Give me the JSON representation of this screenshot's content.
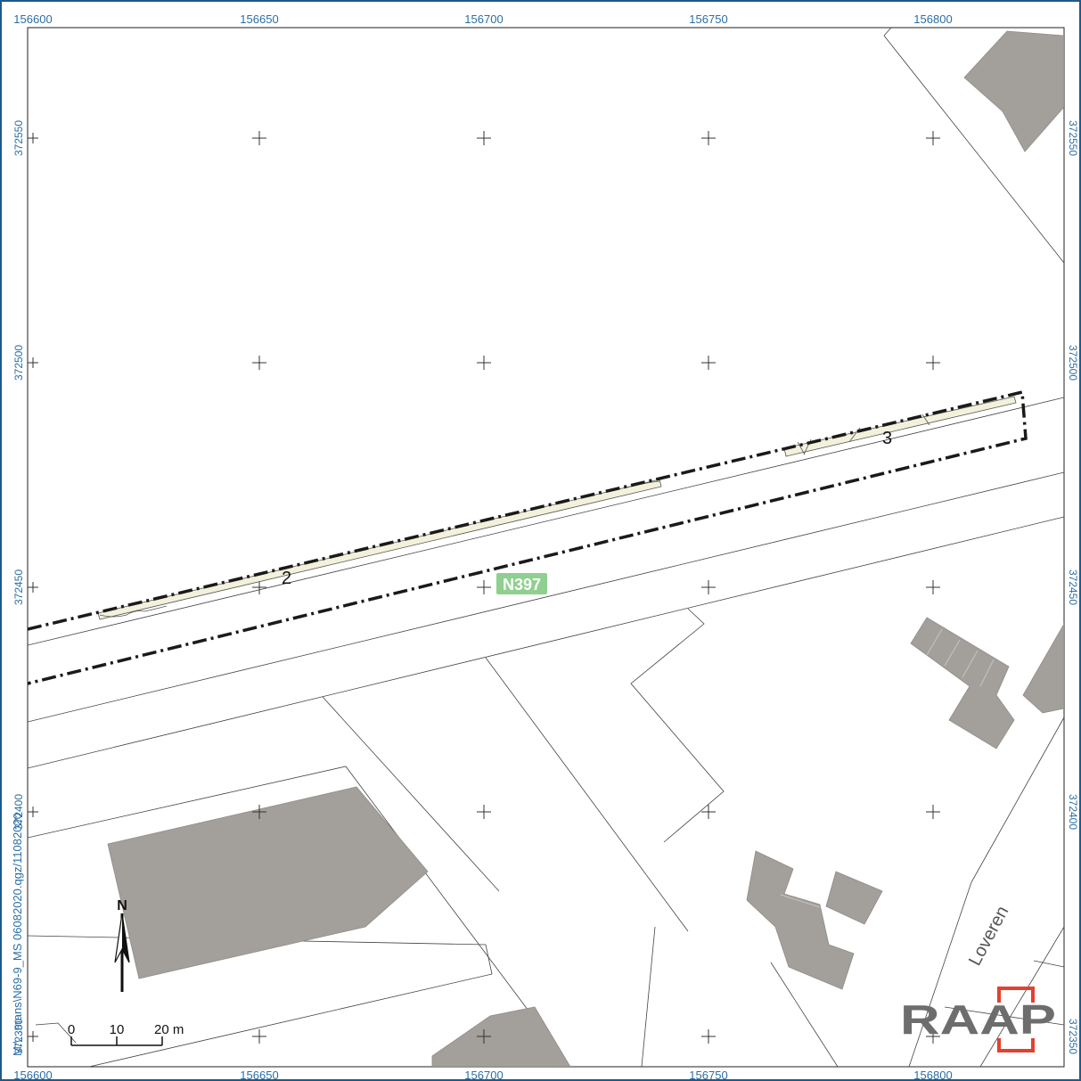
{
  "map": {
    "x_labels": [
      "156600",
      "156650",
      "156700",
      "156750",
      "156800"
    ],
    "y_labels": [
      "372550",
      "372500",
      "372450",
      "372400",
      "372350"
    ],
    "road_label": "N397",
    "street_label": "Loveren",
    "zone_labels": [
      "2",
      "3"
    ],
    "north_label": "N",
    "scale": {
      "tick_0": "0",
      "tick_10": "10",
      "tick_20": "20 m"
    },
    "file_path": "M:\\...mans\\N69-9_MS 06082020.qgz/11082020",
    "logo_text": "RAAP"
  },
  "colors": {
    "frame": "#1d5a8a",
    "coord_text": "#2a6ea6",
    "building": "#a39f9a",
    "road_badge": "#8fcf8f",
    "zone_fill": "#f3f1dc",
    "logo_gray": "#6d6d6d",
    "logo_red": "#e2412f"
  }
}
